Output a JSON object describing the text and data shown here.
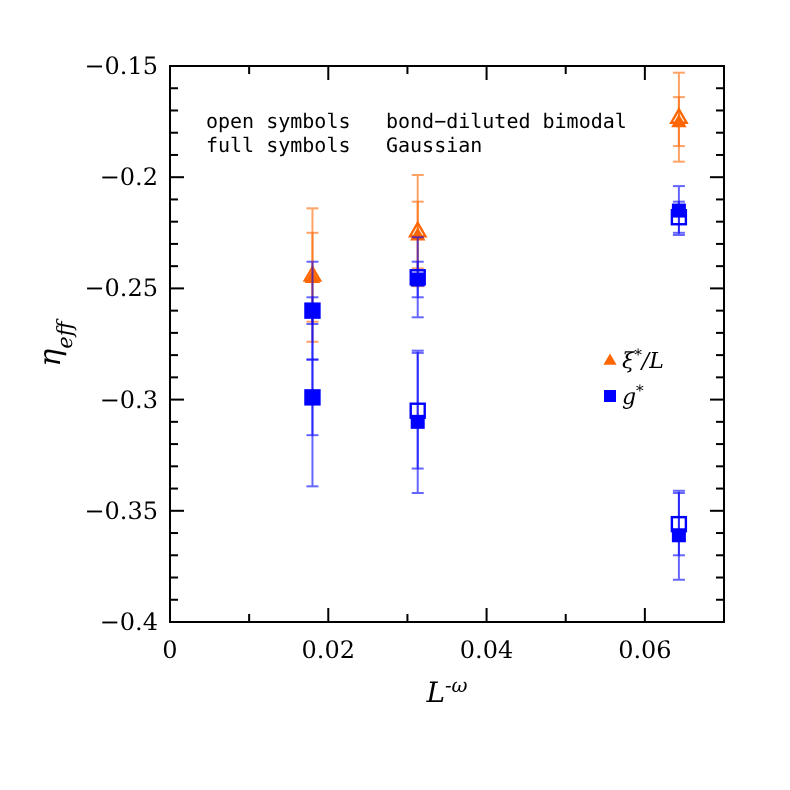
{
  "chart_data": {
    "type": "scatter",
    "xlabel": "L$^{-ω}$",
    "ylabel": "η$_{eff}$",
    "xlim": [
      0,
      0.07
    ],
    "xticks": [
      0,
      {
        "value": 0.01,
        "label": null
      },
      0.02,
      {
        "value": 0.03,
        "label": null
      },
      0.04,
      {
        "value": 0.05,
        "label": null
      },
      0.06
    ],
    "ylim": [
      -0.4,
      -0.15
    ],
    "yticks": [
      {
        "value": -0.4,
        "label": "−0.4"
      },
      {
        "value": -0.39,
        "label": null
      },
      {
        "value": -0.38,
        "label": null
      },
      {
        "value": -0.37,
        "label": null
      },
      {
        "value": -0.36,
        "label": null
      },
      {
        "value": -0.35,
        "label": "−0.35"
      },
      {
        "value": -0.34,
        "label": null
      },
      {
        "value": -0.33,
        "label": null
      },
      {
        "value": -0.32,
        "label": null
      },
      {
        "value": -0.31,
        "label": null
      },
      {
        "value": -0.3,
        "label": "−0.3"
      },
      {
        "value": -0.29,
        "label": null
      },
      {
        "value": -0.28,
        "label": null
      },
      {
        "value": -0.27,
        "label": null
      },
      {
        "value": -0.26,
        "label": null
      },
      {
        "value": -0.25,
        "label": "−0.25"
      },
      {
        "value": -0.24,
        "label": null
      },
      {
        "value": -0.23,
        "label": null
      },
      {
        "value": -0.22,
        "label": null
      },
      {
        "value": -0.21,
        "label": null
      },
      {
        "value": -0.2,
        "label": "−0.2"
      },
      {
        "value": -0.19,
        "label": null
      },
      {
        "value": -0.18,
        "label": null
      },
      {
        "value": -0.17,
        "label": null
      },
      {
        "value": -0.16,
        "label": null
      },
      {
        "value": -0.15,
        "label": "−0.15"
      }
    ],
    "grid": false,
    "legend": "right",
    "annotations": [
      "open symbols",
      "bond−diluted bimodal",
      "full symbols",
      "Gaussian"
    ],
    "series": [
      {
        "color": "#ff6600",
        "marker": "triangle-open",
        "x": [
          0.018,
          0.0313,
          0.0643
        ],
        "values": [
          -0.244,
          -0.224,
          -0.173
        ],
        "errors": [
          0.03,
          0.025,
          0.02
        ]
      },
      {
        "name": "ξ$^{*}$/L",
        "color": "#ff6600",
        "marker": "triangle",
        "x": [
          0.018,
          0.0313,
          0.0643
        ],
        "values": [
          -0.245,
          -0.226,
          -0.175
        ],
        "errors": [
          0.02,
          0.015,
          0.011
        ]
      },
      {
        "color": "#0000ff",
        "marker": "square-open",
        "x": [
          0.018,
          0.018,
          0.0313,
          0.0313,
          0.0643,
          0.0643
        ],
        "values": [
          -0.26,
          -0.299,
          -0.245,
          -0.305,
          -0.218,
          -0.356
        ],
        "errors": [
          0.022,
          0.04,
          0.018,
          0.026,
          0.007,
          0.014
        ]
      },
      {
        "name": "g$^{*}$",
        "color": "#0000ff",
        "marker": "square",
        "x": [
          0.018,
          0.018,
          0.0313,
          0.0313,
          0.0643,
          0.0643
        ],
        "values": [
          -0.26,
          -0.299,
          -0.246,
          -0.31,
          -0.215,
          -0.361
        ],
        "errors": [
          0.006,
          0.017,
          0.008,
          0.032,
          0.011,
          0.02
        ]
      }
    ]
  }
}
